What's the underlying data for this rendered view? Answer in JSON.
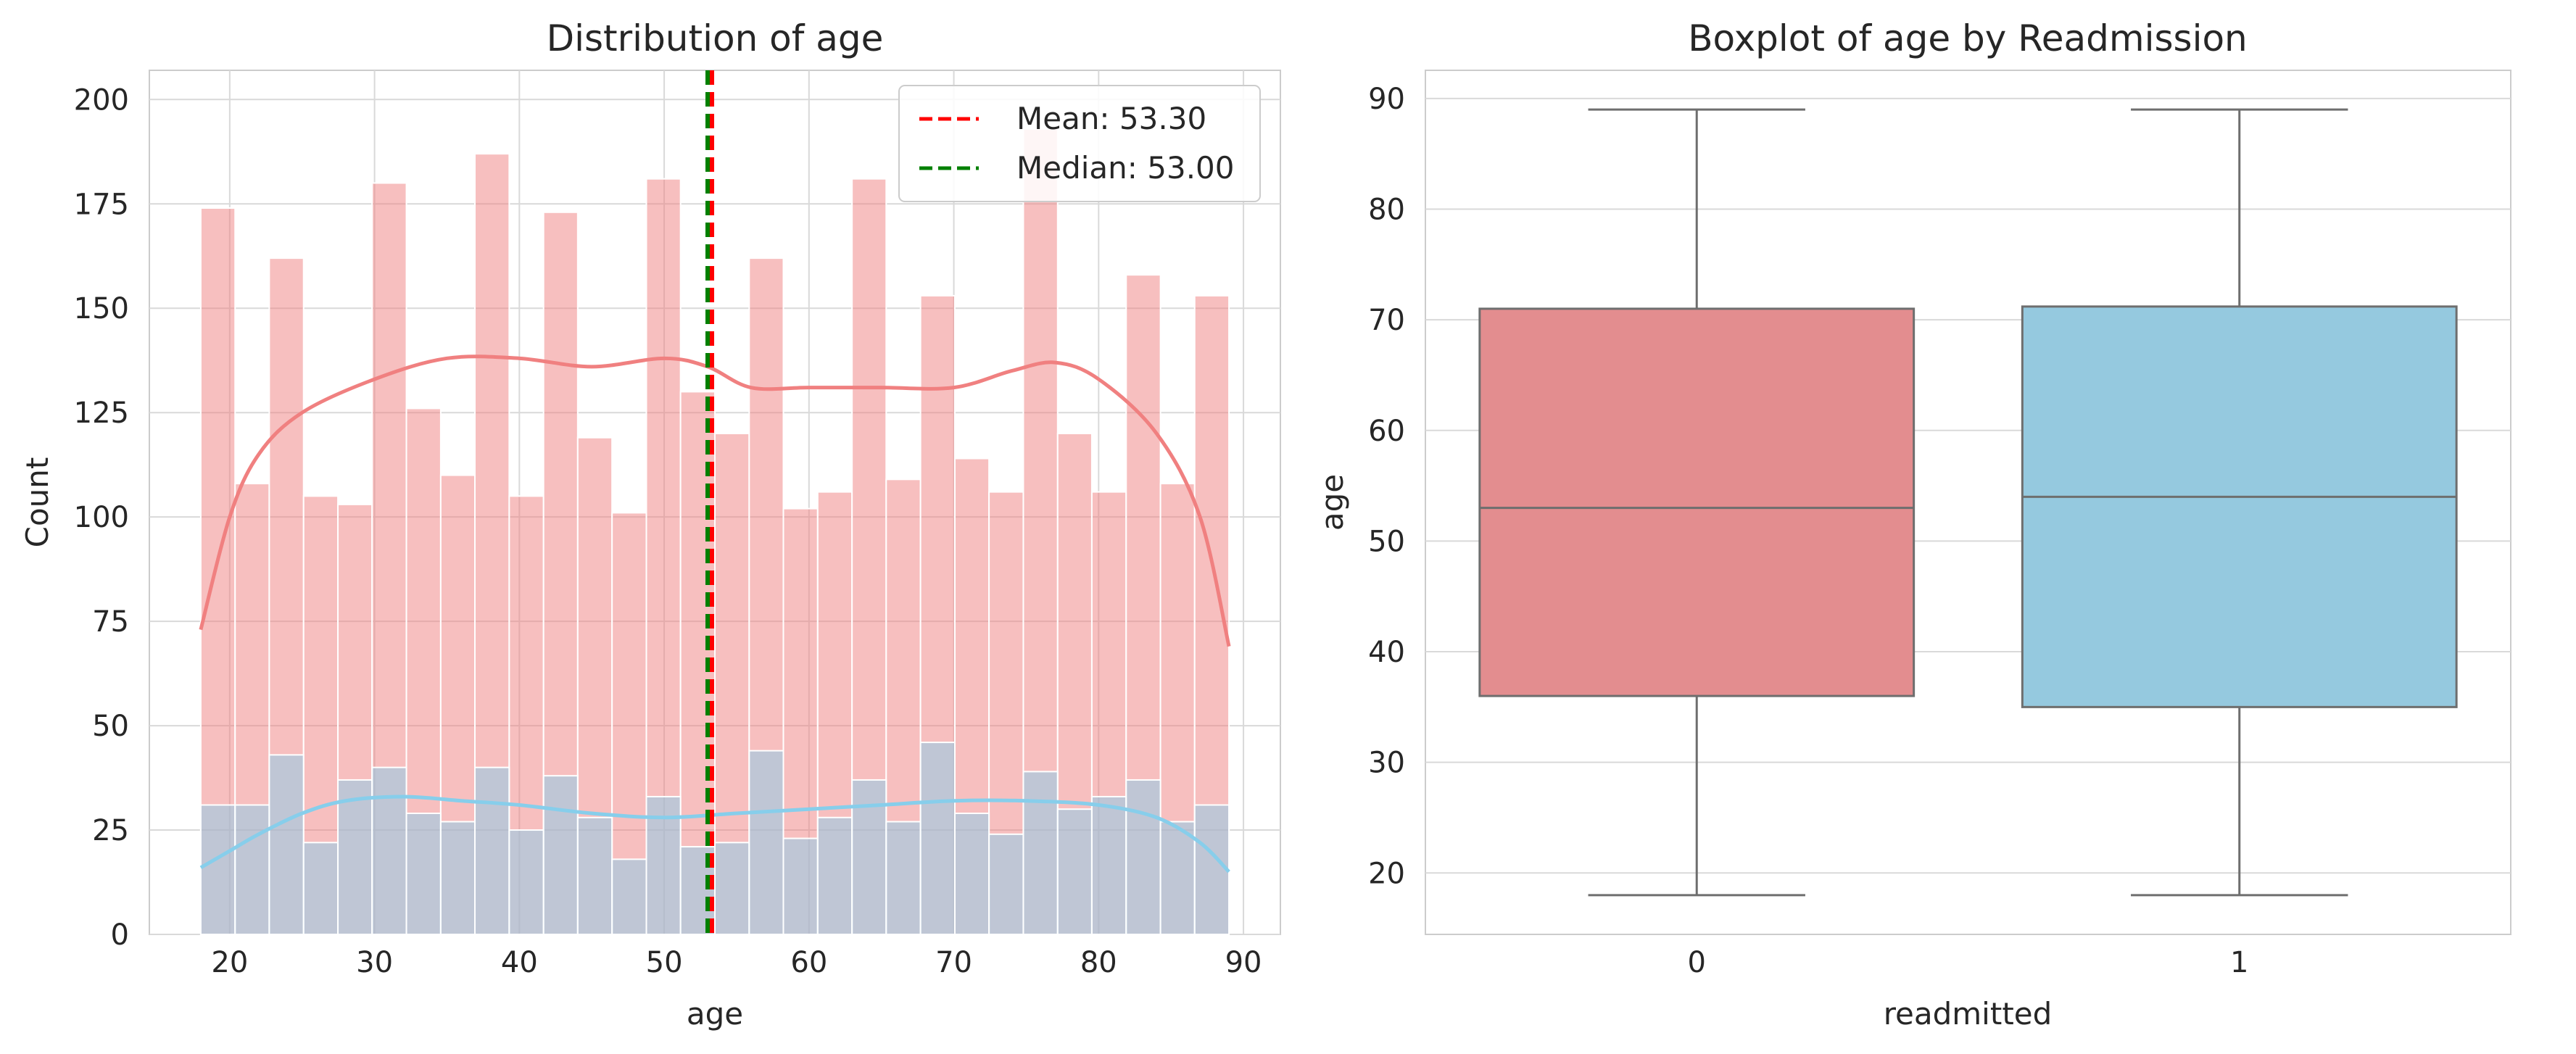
{
  "chart_data": [
    {
      "type": "bar",
      "title": "Distribution of age",
      "xlabel": "age",
      "ylabel": "Count",
      "xlim": [
        14.45,
        92.55
      ],
      "ylim": [
        0,
        207
      ],
      "xticks": [
        20,
        30,
        40,
        50,
        60,
        70,
        80,
        90
      ],
      "yticks": [
        0,
        25,
        50,
        75,
        100,
        125,
        150,
        175,
        200
      ],
      "grid": true,
      "legend": "top-right",
      "bin_edges": [
        18,
        20.37,
        22.73,
        25.1,
        27.47,
        29.83,
        32.2,
        34.57,
        36.93,
        39.3,
        41.67,
        44.03,
        46.4,
        48.77,
        51.13,
        53.5,
        55.87,
        58.23,
        60.6,
        62.97,
        65.33,
        67.7,
        70.07,
        72.43,
        74.8,
        77.17,
        79.53,
        81.9,
        84.27,
        86.63,
        89
      ],
      "series": [
        {
          "name": "",
          "color": "#f08080",
          "values": [
            174,
            108,
            162,
            105,
            103,
            180,
            126,
            110,
            187,
            105,
            173,
            119,
            101,
            181,
            130,
            120,
            162,
            102,
            106,
            181,
            109,
            153,
            114,
            106,
            193,
            120,
            106,
            158,
            108,
            153
          ],
          "kde": [
            [
              18,
              73
            ],
            [
              20,
              100
            ],
            [
              22,
              115
            ],
            [
              25,
              125
            ],
            [
              30,
              133
            ],
            [
              35,
              138
            ],
            [
              40,
              138
            ],
            [
              45,
              136
            ],
            [
              50,
              138
            ],
            [
              53,
              136
            ],
            [
              56,
              131
            ],
            [
              60,
              131
            ],
            [
              65,
              131
            ],
            [
              70,
              131
            ],
            [
              74,
              135
            ],
            [
              77,
              137
            ],
            [
              80,
              133
            ],
            [
              84,
              120
            ],
            [
              87,
              100
            ],
            [
              89,
              69
            ]
          ]
        },
        {
          "name": "",
          "color": "#87ceeb",
          "values": [
            31,
            31,
            43,
            22,
            37,
            40,
            29,
            27,
            40,
            25,
            38,
            28,
            18,
            33,
            21,
            22,
            44,
            23,
            28,
            37,
            27,
            46,
            29,
            24,
            39,
            30,
            33,
            37,
            27,
            31
          ],
          "kde": [
            [
              18,
              16
            ],
            [
              20,
              20
            ],
            [
              22,
              24
            ],
            [
              25,
              29
            ],
            [
              28,
              32
            ],
            [
              32,
              33
            ],
            [
              36,
              32
            ],
            [
              40,
              31
            ],
            [
              45,
              29
            ],
            [
              50,
              28
            ],
            [
              55,
              29
            ],
            [
              60,
              30
            ],
            [
              65,
              31
            ],
            [
              70,
              32
            ],
            [
              75,
              32
            ],
            [
              80,
              31
            ],
            [
              84,
              28
            ],
            [
              87,
              22
            ],
            [
              89,
              15
            ]
          ]
        }
      ],
      "reference_lines": [
        {
          "label": "Mean: 53.30",
          "value": 53.3,
          "color": "#ff0000"
        },
        {
          "label": "Median: 53.00",
          "value": 53.0,
          "color": "#008000"
        }
      ]
    },
    {
      "type": "box",
      "title": "Boxplot of age by Readmission",
      "xlabel": "readmitted",
      "ylabel": "age",
      "ylim": [
        14.45,
        92.55
      ],
      "yticks": [
        20,
        30,
        40,
        50,
        60,
        70,
        80,
        90
      ],
      "grid": true,
      "categories": [
        "0",
        "1"
      ],
      "boxes": [
        {
          "category": "0",
          "min": 18,
          "q1": 36,
          "median": 53,
          "q3": 71,
          "max": 89,
          "color": "#e38d8f"
        },
        {
          "category": "1",
          "min": 18,
          "q1": 35,
          "median": 54,
          "q3": 71.2,
          "max": 89,
          "color": "#95c9df"
        }
      ]
    }
  ]
}
